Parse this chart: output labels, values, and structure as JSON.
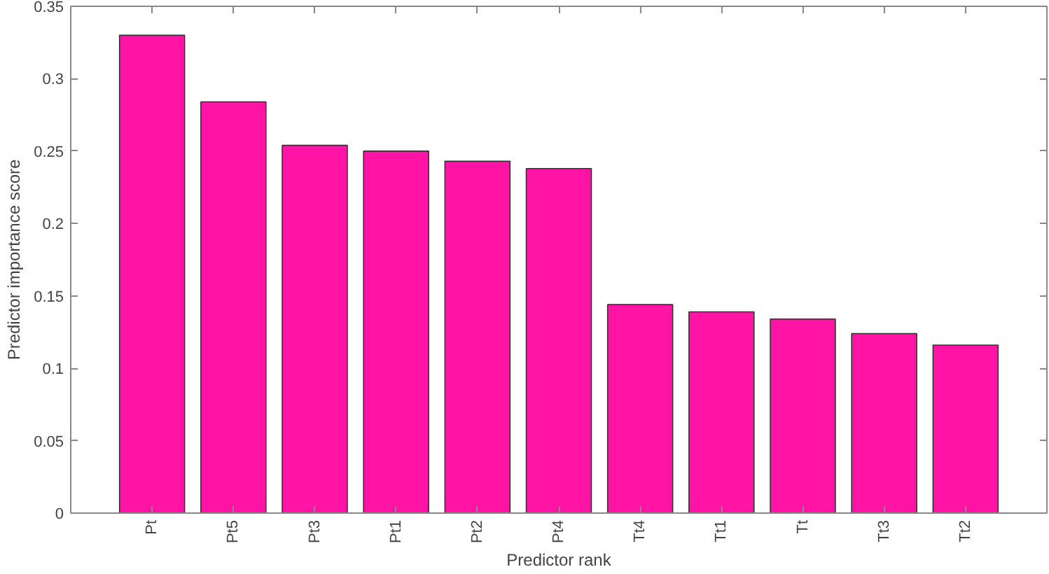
{
  "chart_data": {
    "type": "bar",
    "xlabel": "Predictor rank",
    "ylabel": "Predictor importance score",
    "categories": [
      "Pt",
      "Pt5",
      "Pt3",
      "Pt1",
      "Pt2",
      "Pt4",
      "Tt4",
      "Tt1",
      "Tt",
      "Tt3",
      "Tt2"
    ],
    "values": [
      0.33,
      0.284,
      0.254,
      0.25,
      0.243,
      0.238,
      0.144,
      0.139,
      0.134,
      0.124,
      0.116
    ],
    "color": "#ff14a6",
    "ylim": [
      0,
      0.35
    ],
    "yticks": [
      0,
      {
        "value": 0.05,
        "label": "0.05"
      },
      {
        "value": 0.1,
        "label": "0.1"
      },
      {
        "value": 0.15,
        "label": "0.15"
      },
      {
        "value": 0.2,
        "label": "0.2"
      },
      {
        "value": 0.25,
        "label": "0.25"
      },
      {
        "value": 0.3,
        "label": "0.3"
      },
      {
        "value": 0.35,
        "label": "0.35"
      }
    ],
    "grid": false
  }
}
